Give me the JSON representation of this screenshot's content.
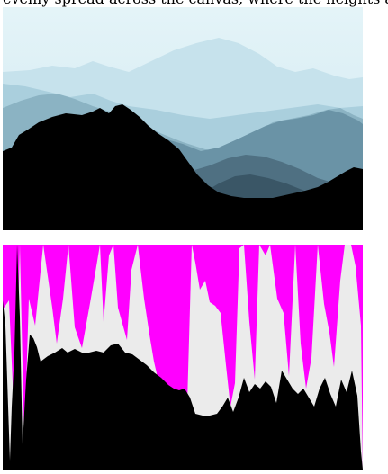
{
  "intro_text": "evenly spread across the canvas, where the heights are a single poi",
  "photo": {
    "sky_top_color": "#e4f4f8",
    "sky_bottom_color": "#cfe7f0",
    "layer_colors": [
      "#c6e2ec",
      "#aacfdd",
      "#8bb3c3",
      "#6a93a6",
      "#4f7082",
      "#3a5666",
      "#000000"
    ]
  },
  "canvas": {
    "background_color": "#ff00ff",
    "light_color": "#ebebeb",
    "dark_color": "#000000"
  }
}
